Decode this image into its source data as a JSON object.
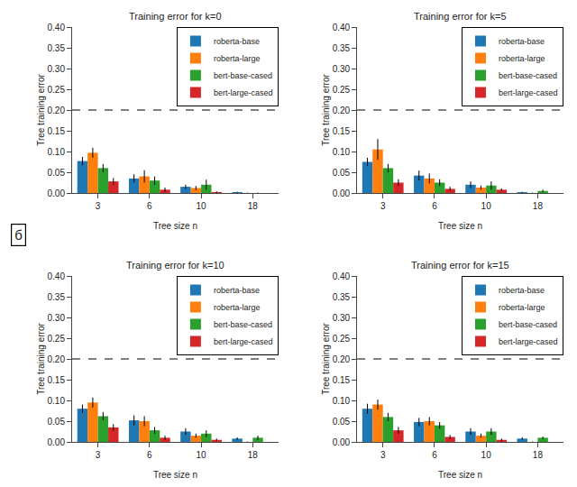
{
  "chart_data": [
    {
      "type": "bar",
      "title": "Training error for k=0",
      "xlabel": "Tree size n",
      "ylabel": "Tree training error",
      "categories": [
        "3",
        "6",
        "10",
        "18"
      ],
      "series": [
        {
          "name": "roberta-base",
          "color": "#1f77b4",
          "values": [
            0.077,
            0.035,
            0.015,
            0.002
          ],
          "errors": [
            0.01,
            0.01,
            0.005,
            0.001
          ]
        },
        {
          "name": "roberta-large",
          "color": "#ff7f0e",
          "values": [
            0.097,
            0.04,
            0.012,
            0
          ],
          "errors": [
            0.012,
            0.015,
            0.005,
            0.001
          ]
        },
        {
          "name": "bert-base-cased",
          "color": "#2ca02c",
          "values": [
            0.06,
            0.03,
            0.02,
            0
          ],
          "errors": [
            0.01,
            0.01,
            0.012,
            0.001
          ]
        },
        {
          "name": "bert-large-cased",
          "color": "#d62728",
          "values": [
            0.028,
            0.008,
            0.002,
            0
          ],
          "errors": [
            0.008,
            0.005,
            0.002,
            0
          ]
        }
      ],
      "hline": 0.2,
      "ylim": [
        0.0,
        0.4
      ],
      "yticks": [
        {
          "value": 0.0,
          "label": "0.00"
        },
        {
          "value": 0.05,
          "label": "0.05"
        },
        {
          "value": 0.1,
          "label": "0.10"
        },
        {
          "value": 0.15,
          "label": "0.15"
        },
        {
          "value": 0.2,
          "label": "0.20"
        },
        {
          "value": 0.25,
          "label": "0.25"
        },
        {
          "value": 0.3,
          "label": "0.30"
        },
        {
          "value": 0.35,
          "label": "0.35"
        },
        {
          "value": 0.4,
          "label": "0.40"
        }
      ],
      "grid": false,
      "legend": "upper right"
    },
    {
      "type": "bar",
      "title": "Training error for k=5",
      "xlabel": "Tree size n",
      "ylabel": "Tree training error",
      "categories": [
        "3",
        "6",
        "10",
        "18"
      ],
      "series": [
        {
          "name": "roberta-base",
          "color": "#1f77b4",
          "values": [
            0.075,
            0.042,
            0.02,
            0.002
          ],
          "errors": [
            0.01,
            0.012,
            0.008,
            0.001
          ]
        },
        {
          "name": "roberta-large",
          "color": "#ff7f0e",
          "values": [
            0.105,
            0.035,
            0.013,
            0
          ],
          "errors": [
            0.025,
            0.012,
            0.005,
            0.001
          ]
        },
        {
          "name": "bert-base-cased",
          "color": "#2ca02c",
          "values": [
            0.06,
            0.025,
            0.018,
            0.005
          ],
          "errors": [
            0.01,
            0.008,
            0.01,
            0.003
          ]
        },
        {
          "name": "bert-large-cased",
          "color": "#d62728",
          "values": [
            0.025,
            0.01,
            0.008,
            0
          ],
          "errors": [
            0.008,
            0.005,
            0.003,
            0
          ]
        }
      ],
      "hline": 0.2,
      "ylim": [
        0.0,
        0.4
      ],
      "yticks": [
        {
          "value": 0.0,
          "label": "0.00"
        },
        {
          "value": 0.05,
          "label": "0.05"
        },
        {
          "value": 0.1,
          "label": "0.10"
        },
        {
          "value": 0.15,
          "label": "0.15"
        },
        {
          "value": 0.2,
          "label": "0.20"
        },
        {
          "value": 0.25,
          "label": "0.25"
        },
        {
          "value": 0.3,
          "label": "0.30"
        },
        {
          "value": 0.35,
          "label": "0.35"
        },
        {
          "value": 0.4,
          "label": "0.40"
        }
      ],
      "grid": false,
      "legend": "upper right"
    },
    {
      "type": "bar",
      "title": "Training error for k=10",
      "xlabel": "Tree size n",
      "ylabel": "Tree training error",
      "categories": [
        "3",
        "6",
        "10",
        "18"
      ],
      "series": [
        {
          "name": "roberta-base",
          "color": "#1f77b4",
          "values": [
            0.08,
            0.052,
            0.025,
            0.008
          ],
          "errors": [
            0.01,
            0.012,
            0.008,
            0.003
          ]
        },
        {
          "name": "roberta-large",
          "color": "#ff7f0e",
          "values": [
            0.095,
            0.05,
            0.015,
            0
          ],
          "errors": [
            0.012,
            0.012,
            0.005,
            0.001
          ]
        },
        {
          "name": "bert-base-cased",
          "color": "#2ca02c",
          "values": [
            0.062,
            0.028,
            0.02,
            0.01
          ],
          "errors": [
            0.01,
            0.008,
            0.008,
            0.005
          ]
        },
        {
          "name": "bert-large-cased",
          "color": "#d62728",
          "values": [
            0.035,
            0.01,
            0.005,
            0
          ],
          "errors": [
            0.008,
            0.005,
            0.003,
            0
          ]
        }
      ],
      "hline": 0.2,
      "ylim": [
        0.0,
        0.4
      ],
      "yticks": [
        {
          "value": 0.0,
          "label": "0.00"
        },
        {
          "value": 0.05,
          "label": "0.05"
        },
        {
          "value": 0.1,
          "label": "0.10"
        },
        {
          "value": 0.15,
          "label": "0.15"
        },
        {
          "value": 0.2,
          "label": "0.20"
        },
        {
          "value": 0.25,
          "label": "0.25"
        },
        {
          "value": 0.3,
          "label": "0.30"
        },
        {
          "value": 0.35,
          "label": "0.35"
        },
        {
          "value": 0.4,
          "label": "0.40"
        }
      ],
      "grid": false,
      "legend": "upper right"
    },
    {
      "type": "bar",
      "title": "Training error for k=15",
      "xlabel": "Tree size n",
      "ylabel": "Tree training error",
      "categories": [
        "3",
        "6",
        "10",
        "18"
      ],
      "series": [
        {
          "name": "roberta-base",
          "color": "#1f77b4",
          "values": [
            0.08,
            0.048,
            0.025,
            0.008
          ],
          "errors": [
            0.012,
            0.01,
            0.008,
            0.003
          ]
        },
        {
          "name": "roberta-large",
          "color": "#ff7f0e",
          "values": [
            0.09,
            0.05,
            0.015,
            0
          ],
          "errors": [
            0.012,
            0.01,
            0.005,
            0.001
          ]
        },
        {
          "name": "bert-base-cased",
          "color": "#2ca02c",
          "values": [
            0.06,
            0.04,
            0.025,
            0.01
          ],
          "errors": [
            0.01,
            0.008,
            0.008,
            0.003
          ]
        },
        {
          "name": "bert-large-cased",
          "color": "#d62728",
          "values": [
            0.028,
            0.012,
            0.005,
            0
          ],
          "errors": [
            0.008,
            0.005,
            0.003,
            0
          ]
        }
      ],
      "hline": 0.2,
      "ylim": [
        0.0,
        0.4
      ],
      "yticks": [
        {
          "value": 0.0,
          "label": "0.00"
        },
        {
          "value": 0.05,
          "label": "0.05"
        },
        {
          "value": 0.1,
          "label": "0.10"
        },
        {
          "value": 0.15,
          "label": "0.15"
        },
        {
          "value": 0.2,
          "label": "0.20"
        },
        {
          "value": 0.25,
          "label": "0.25"
        },
        {
          "value": 0.3,
          "label": "0.30"
        },
        {
          "value": 0.35,
          "label": "0.35"
        },
        {
          "value": 0.4,
          "label": "0.40"
        }
      ],
      "grid": false,
      "legend": "upper right"
    }
  ],
  "annotation": "б"
}
